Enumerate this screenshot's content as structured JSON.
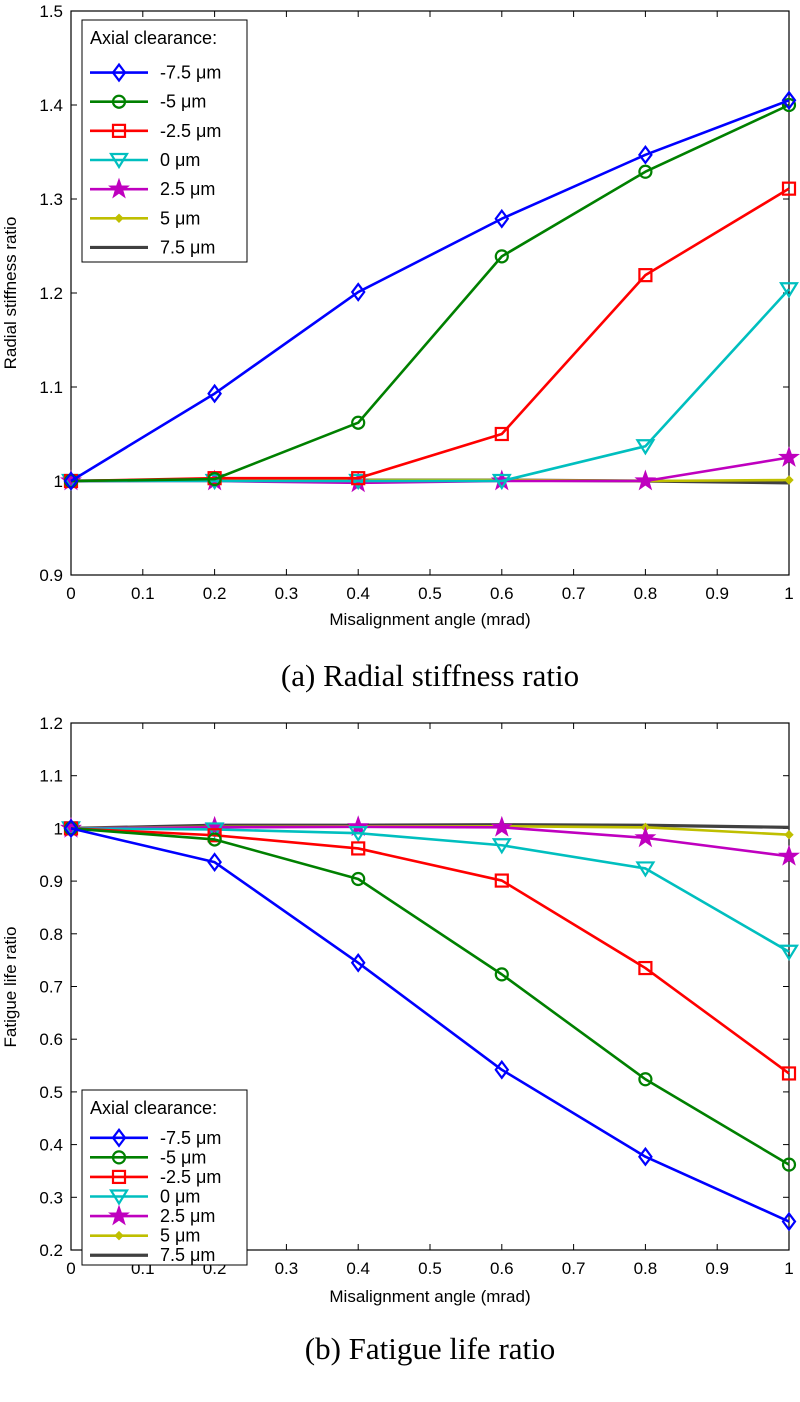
{
  "chart_data": [
    {
      "type": "line",
      "caption": "(a) Radial stiffness ratio",
      "xlabel": "Misalignment angle (mrad)",
      "ylabel": "Radial stiffness ratio",
      "xlim": [
        0,
        1
      ],
      "ylim": [
        0.9,
        1.5
      ],
      "xticks": [
        0,
        0.1,
        0.2,
        0.3,
        0.4,
        0.5,
        0.6,
        0.7,
        0.8,
        0.9,
        1
      ],
      "xtick_labels": [
        "0",
        "0.1",
        "0.2",
        "0.3",
        "0.4",
        "0.5",
        "0.6",
        "0.7",
        "0.8",
        "0.9",
        "1"
      ],
      "yticks": [
        0.9,
        1.0,
        1.1,
        1.2,
        1.3,
        1.4,
        1.5
      ],
      "ytick_labels": [
        "0.9",
        "1",
        "1.1",
        "1.2",
        "1.3",
        "1.4",
        "1.5"
      ],
      "legend_title": "Axial clearance:",
      "legend_position": "top-left",
      "x": [
        0,
        0.2,
        0.4,
        0.6,
        0.8,
        1.0
      ],
      "series": [
        {
          "name": "-7.5 μm",
          "color": "#0000ff",
          "marker": "diamond",
          "values": [
            1.0,
            1.093,
            1.201,
            1.279,
            1.347,
            1.405
          ]
        },
        {
          "name": "-5 μm",
          "color": "#008000",
          "marker": "circle",
          "values": [
            1.0,
            1.002,
            1.062,
            1.239,
            1.329,
            1.4
          ]
        },
        {
          "name": "-2.5 μm",
          "color": "#ff0000",
          "marker": "square",
          "values": [
            1.0,
            1.003,
            1.003,
            1.05,
            1.219,
            1.311
          ]
        },
        {
          "name": "0 μm",
          "color": "#00bfbf",
          "marker": "triangle-down",
          "values": [
            1.0,
            1.0,
            1.0,
            1.0,
            1.037,
            1.204
          ]
        },
        {
          "name": "2.5 μm",
          "color": "#bf00bf",
          "marker": "star",
          "values": [
            1.0,
            1.0,
            0.998,
            1.0,
            1.0,
            1.025
          ]
        },
        {
          "name": "5 μm",
          "color": "#bfbf00",
          "marker": "dot",
          "values": [
            1.0,
            1.001,
            1.001,
            1.001,
            1.0,
            1.001
          ]
        },
        {
          "name": "7.5 μm",
          "color": "#404040",
          "marker": "none",
          "values": [
            1.0,
            1.001,
            1.001,
            1.001,
            1.0,
            0.998
          ]
        }
      ]
    },
    {
      "type": "line",
      "caption": "(b) Fatigue life ratio",
      "xlabel": "Misalignment angle (mrad)",
      "ylabel": "Fatigue life ratio",
      "xlim": [
        0,
        1
      ],
      "ylim": [
        0.2,
        1.2
      ],
      "xticks": [
        0,
        0.1,
        0.2,
        0.3,
        0.4,
        0.5,
        0.6,
        0.7,
        0.8,
        0.9,
        1
      ],
      "xtick_labels": [
        "0",
        "0.1",
        "0.2",
        "0.3",
        "0.4",
        "0.5",
        "0.6",
        "0.7",
        "0.8",
        "0.9",
        "1"
      ],
      "yticks": [
        0.2,
        0.3,
        0.4,
        0.5,
        0.6,
        0.7,
        0.8,
        0.9,
        1.0,
        1.1,
        1.2
      ],
      "ytick_labels": [
        "0.2",
        "0.3",
        "0.4",
        "0.5",
        "0.6",
        "0.7",
        "0.8",
        "0.9",
        "1",
        "1.1",
        "1.2"
      ],
      "legend_title": "Axial clearance:",
      "legend_position": "bottom-left",
      "x": [
        0,
        0.2,
        0.4,
        0.6,
        0.8,
        1.0
      ],
      "series": [
        {
          "name": "-7.5 μm",
          "color": "#0000ff",
          "marker": "diamond",
          "values": [
            1.0,
            0.936,
            0.745,
            0.542,
            0.377,
            0.254
          ]
        },
        {
          "name": "-5 μm",
          "color": "#008000",
          "marker": "circle",
          "values": [
            1.0,
            0.979,
            0.904,
            0.723,
            0.524,
            0.362
          ]
        },
        {
          "name": "-2.5 μm",
          "color": "#ff0000",
          "marker": "square",
          "values": [
            1.0,
            0.987,
            0.962,
            0.901,
            0.735,
            0.535
          ]
        },
        {
          "name": "0 μm",
          "color": "#00bfbf",
          "marker": "triangle-down",
          "values": [
            1.0,
            0.998,
            0.991,
            0.968,
            0.924,
            0.766
          ]
        },
        {
          "name": "2.5 μm",
          "color": "#bf00bf",
          "marker": "star",
          "values": [
            1.0,
            1.002,
            1.003,
            1.002,
            0.982,
            0.947
          ]
        },
        {
          "name": "5 μm",
          "color": "#bfbf00",
          "marker": "dot",
          "values": [
            1.0,
            1.003,
            1.004,
            1.004,
            1.002,
            0.988
          ]
        },
        {
          "name": "7.5 μm",
          "color": "#404040",
          "marker": "none",
          "values": [
            1.0,
            1.006,
            1.006,
            1.007,
            1.006,
            1.002
          ]
        }
      ]
    }
  ]
}
